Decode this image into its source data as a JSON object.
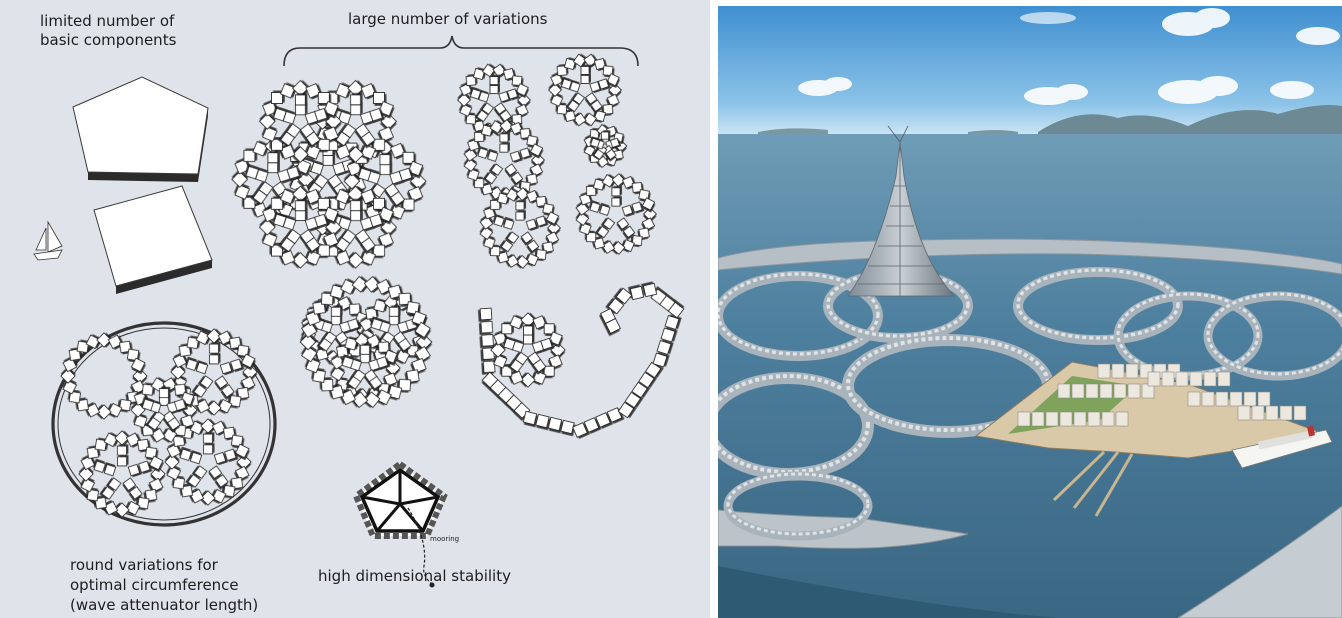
{
  "left_diagram": {
    "labels": {
      "basic_components_line1": "limited number of",
      "basic_components_line2": "basic components",
      "variations_title": "large number of variations",
      "round_line1": "round variations for",
      "round_line2": "optimal circumference",
      "round_line3": "(wave attenuator length)",
      "stability": "high dimensional stability",
      "mooring": "mooring"
    },
    "colors": {
      "background": "#dfe3ea",
      "tile_fill": "#ffffff",
      "tile_stroke": "#2a2a2a",
      "shadow": "#2b2b2b"
    },
    "icons": [
      "pentagon-block-icon",
      "square-block-icon",
      "sailboat-icon"
    ]
  },
  "right_image": {
    "icons": [
      "floating-city-rendering",
      "spire-tower-icon",
      "cruise-ship-icon"
    ],
    "colors": {
      "sky_top": "#3f8fd0",
      "sky_horizon": "#cfe6f5",
      "water": "#3f6f8e",
      "platform": "#a9b3bb",
      "buildings": "#e8e4dc"
    }
  }
}
